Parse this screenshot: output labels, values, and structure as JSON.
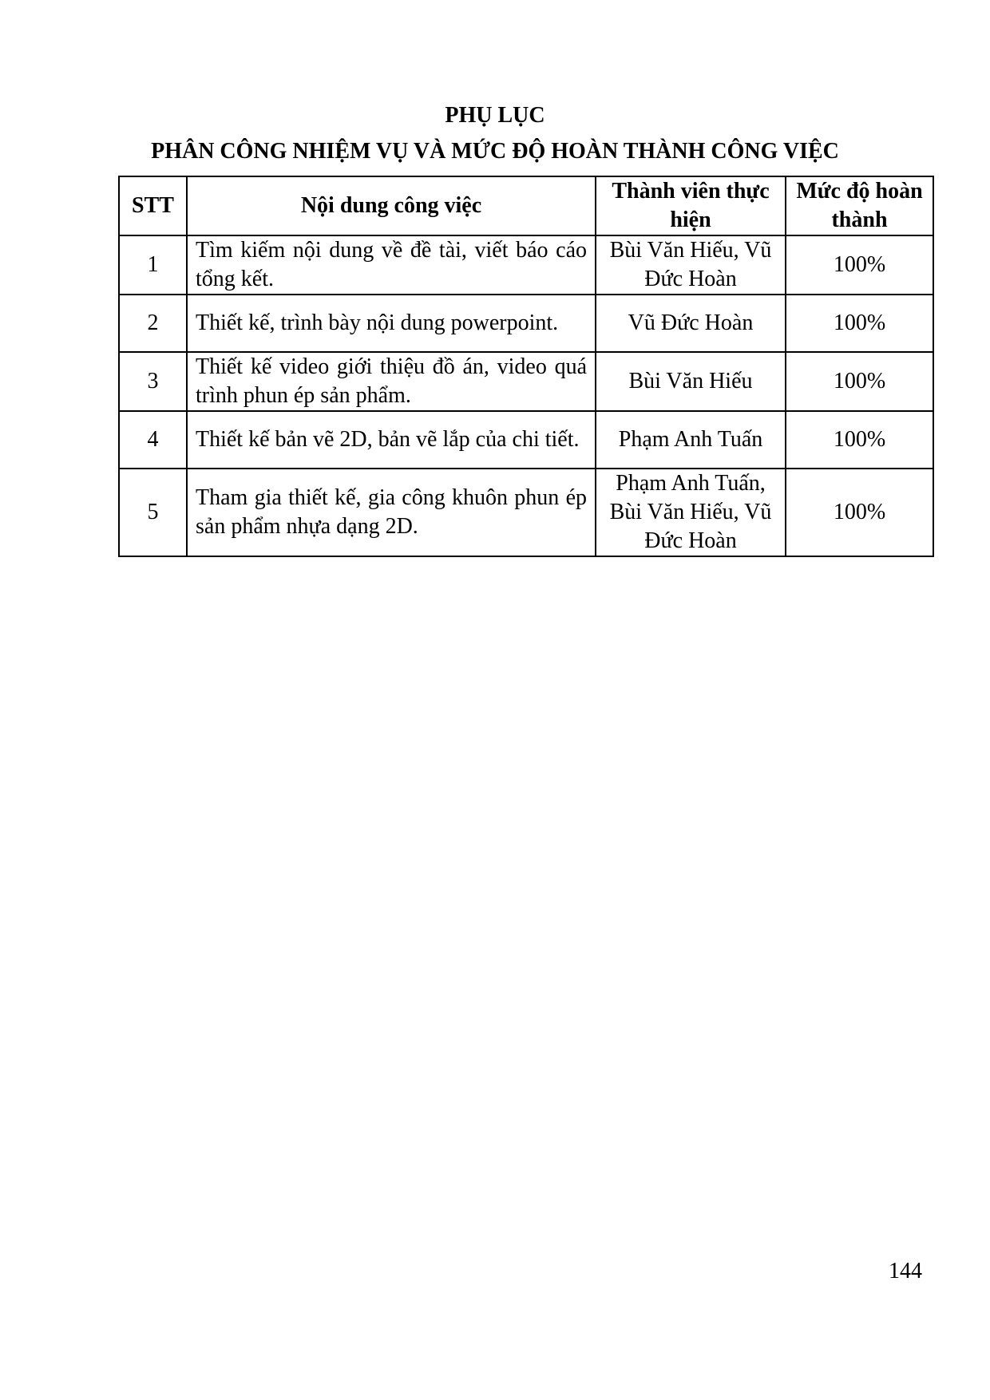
{
  "heading": "PHỤ LỤC",
  "subheading": "PHÂN CÔNG NHIỆM VỤ VÀ MỨC ĐỘ HOÀN THÀNH CÔNG VIỆC",
  "table": {
    "headers": [
      "STT",
      "Nội dung công việc",
      "Thành viên thực hiện",
      "Mức độ hoàn thành"
    ],
    "rows": [
      {
        "stt": "1",
        "task": "Tìm kiếm nội dung về đề tài, viết báo cáo tổng kết.",
        "members": "Bùi Văn Hiếu, Vũ Đức Hoàn",
        "completion": "100%"
      },
      {
        "stt": "2",
        "task": "Thiết kế, trình bày nội dung powerpoint.",
        "members": "Vũ Đức Hoàn",
        "completion": "100%"
      },
      {
        "stt": "3",
        "task": "Thiết kế video giới thiệu đồ án, video quá trình phun ép sản phẩm.",
        "members": "Bùi Văn Hiếu",
        "completion": "100%"
      },
      {
        "stt": "4",
        "task": "Thiết kế bản vẽ 2D, bản vẽ lắp của chi tiết.",
        "members": "Phạm Anh Tuấn",
        "completion": "100%"
      },
      {
        "stt": "5",
        "task": "Tham gia thiết kế, gia công khuôn phun ép sản phẩm nhựa dạng 2D.",
        "members": "Phạm Anh Tuấn, Bùi Văn Hiếu, Vũ Đức Hoàn",
        "completion": "100%"
      }
    ]
  },
  "page_number": "144"
}
